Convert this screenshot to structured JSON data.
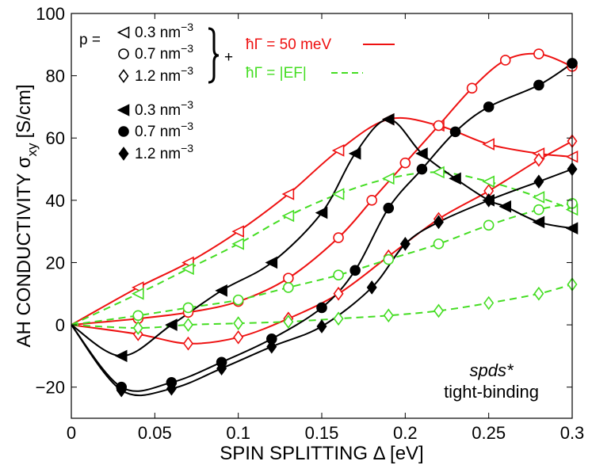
{
  "chart_data": {
    "type": "line",
    "title": "",
    "xlabel": "SPIN SPLITTING Δ [eV]",
    "ylabel": "AH CONDUCTIVITY σxy [S/cm]",
    "ylabel_main": "AH CONDUCTIVITY σ",
    "ylabel_sub": "xy",
    "ylabel_unit": "[S/cm]",
    "xlim": [
      0,
      0.3
    ],
    "ylim": [
      -30,
      100
    ],
    "xticks": [
      0,
      0.05,
      0.1,
      0.15,
      0.2,
      0.25,
      0.3
    ],
    "xtick_labels": [
      "0",
      "0.05",
      "0.1",
      "0.15",
      "0.2",
      "0.25",
      "0.3"
    ],
    "yticks": [
      -20,
      0,
      20,
      40,
      60,
      80,
      100
    ],
    "ytick_labels": [
      "−20",
      "0",
      "20",
      "40",
      "60",
      "80",
      "100"
    ],
    "annotation": {
      "line1": "spds*",
      "line2": "tight-binding"
    },
    "legend": {
      "p_label": "p =",
      "entries": [
        {
          "marker": "triangle-left-open",
          "label": "0.3 nm⁻³",
          "num": "0.3 nm",
          "exp": "−3"
        },
        {
          "marker": "circle-open",
          "label": "0.7 nm⁻³",
          "num": "0.7 nm",
          "exp": "−3"
        },
        {
          "marker": "diamond-open",
          "label": "1.2 nm⁻³",
          "num": "1.2 nm",
          "exp": "−3"
        },
        {
          "marker": "triangle-left-filled",
          "label": "0.3 nm⁻³",
          "num": "0.3 nm",
          "exp": "−3"
        },
        {
          "marker": "circle-filled",
          "label": "0.7 nm⁻³",
          "num": "0.7 nm",
          "exp": "−3"
        },
        {
          "marker": "diamond-filled",
          "label": "1.2 nm⁻³",
          "num": "1.2 nm",
          "exp": "−3"
        }
      ],
      "plus": "+",
      "broadening": [
        {
          "label": "ħΓ = 50 meV",
          "style": "solid",
          "color": "#ee1111"
        },
        {
          "label": "ħΓ = |EF|",
          "style": "dashed",
          "color": "#44dd22"
        }
      ]
    },
    "series": [
      {
        "name": "0.3 nm⁻³, ħΓ=50 meV",
        "color": "#ee1111",
        "dash": false,
        "marker": "triangle-left-open",
        "x": [
          0,
          0.04,
          0.07,
          0.1,
          0.13,
          0.16,
          0.19,
          0.22,
          0.25,
          0.28,
          0.3
        ],
        "y": [
          0,
          12,
          20,
          30,
          42,
          56,
          66,
          64,
          58,
          55,
          54
        ]
      },
      {
        "name": "0.7 nm⁻³, ħΓ=50 meV",
        "color": "#ee1111",
        "dash": false,
        "marker": "circle-open",
        "x": [
          0,
          0.04,
          0.07,
          0.1,
          0.13,
          0.16,
          0.18,
          0.2,
          0.22,
          0.24,
          0.26,
          0.28,
          0.3
        ],
        "y": [
          0,
          2,
          4,
          7.5,
          15,
          28,
          40,
          52,
          64,
          76,
          85,
          87,
          83
        ]
      },
      {
        "name": "1.2 nm⁻³, ħΓ=50 meV",
        "color": "#ee1111",
        "dash": false,
        "marker": "diamond-open",
        "x": [
          0,
          0.04,
          0.07,
          0.1,
          0.13,
          0.16,
          0.19,
          0.22,
          0.25,
          0.28,
          0.3
        ],
        "y": [
          0,
          -3,
          -6,
          -4,
          2,
          10,
          22,
          34,
          43,
          53,
          59
        ]
      },
      {
        "name": "0.3 nm⁻³, ħΓ=|EF|",
        "color": "#44dd22",
        "dash": true,
        "marker": "triangle-left-open",
        "x": [
          0,
          0.04,
          0.07,
          0.1,
          0.13,
          0.16,
          0.19,
          0.22,
          0.25,
          0.28,
          0.3
        ],
        "y": [
          0,
          10,
          18,
          26,
          35,
          42,
          47,
          49,
          46,
          41,
          37
        ]
      },
      {
        "name": "0.7 nm⁻³, ħΓ=|EF|",
        "color": "#44dd22",
        "dash": true,
        "marker": "circle-open",
        "x": [
          0,
          0.04,
          0.07,
          0.1,
          0.13,
          0.16,
          0.19,
          0.22,
          0.25,
          0.28,
          0.3
        ],
        "y": [
          0,
          3,
          5.5,
          8,
          12,
          16,
          21,
          26,
          32,
          37,
          39
        ]
      },
      {
        "name": "1.2 nm⁻³, ħΓ=|EF|",
        "color": "#44dd22",
        "dash": true,
        "marker": "diamond-open",
        "x": [
          0,
          0.04,
          0.07,
          0.1,
          0.13,
          0.16,
          0.19,
          0.22,
          0.25,
          0.28,
          0.3
        ],
        "y": [
          0,
          -1,
          0,
          0.5,
          1,
          2,
          3,
          4.5,
          7,
          10,
          13
        ]
      },
      {
        "name": "0.3 nm⁻³ (tight-binding)",
        "color": "#000000",
        "dash": false,
        "marker": "triangle-left-filled",
        "x": [
          0,
          0.03,
          0.06,
          0.09,
          0.12,
          0.15,
          0.17,
          0.19,
          0.21,
          0.23,
          0.25,
          0.26,
          0.28,
          0.3
        ],
        "y": [
          0,
          -10,
          0,
          11,
          20,
          36,
          55,
          66,
          55,
          47,
          40,
          38,
          33,
          31
        ]
      },
      {
        "name": "0.7 nm⁻³ (tight-binding)",
        "color": "#000000",
        "dash": false,
        "marker": "circle-filled",
        "x": [
          0,
          0.03,
          0.06,
          0.09,
          0.12,
          0.15,
          0.17,
          0.19,
          0.21,
          0.23,
          0.25,
          0.28,
          0.3
        ],
        "y": [
          0,
          -20,
          -18.5,
          -12,
          -4.5,
          5.5,
          17.5,
          37.5,
          50,
          62,
          70,
          77,
          84
        ]
      },
      {
        "name": "1.2 nm⁻³ (tight-binding)",
        "color": "#000000",
        "dash": false,
        "marker": "diamond-filled",
        "x": [
          0,
          0.03,
          0.06,
          0.09,
          0.12,
          0.15,
          0.18,
          0.2,
          0.22,
          0.25,
          0.28,
          0.3
        ],
        "y": [
          0,
          -21,
          -20.5,
          -14,
          -7,
          -0.5,
          12,
          26,
          33,
          40,
          46,
          50
        ]
      }
    ]
  }
}
